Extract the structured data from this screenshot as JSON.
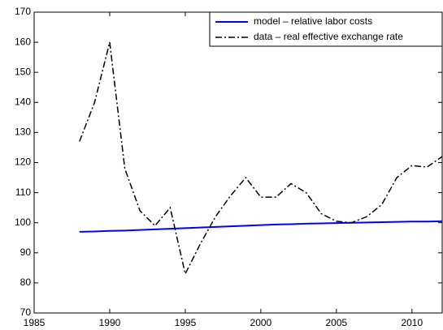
{
  "chart_data": {
    "type": "line",
    "x": [
      1988,
      1989,
      1990,
      1991,
      1992,
      1993,
      1994,
      1995,
      1996,
      1997,
      1998,
      1999,
      2000,
      2001,
      2002,
      2003,
      2004,
      2005,
      2006,
      2007,
      2008,
      2009,
      2010,
      2011,
      2012
    ],
    "series": [
      {
        "name": "model – relative labor costs",
        "color": "#0000ff",
        "style": "solid",
        "values": [
          97.0,
          97.1,
          97.3,
          97.4,
          97.6,
          97.8,
          98.0,
          98.2,
          98.4,
          98.6,
          98.8,
          99.0,
          99.2,
          99.4,
          99.5,
          99.7,
          99.8,
          99.9,
          100.0,
          100.1,
          100.2,
          100.3,
          100.4,
          100.4,
          100.5
        ]
      },
      {
        "name": "data – real effective exchange rate",
        "color": "#000000",
        "style": "dashdot",
        "values": [
          127,
          140,
          160,
          118,
          104,
          99,
          105,
          83,
          93,
          102,
          109,
          115,
          108.5,
          108.5,
          113,
          110,
          103,
          100.5,
          100,
          102,
          106,
          115,
          119,
          118.5,
          122
        ]
      }
    ],
    "xlim": [
      1985,
      2012
    ],
    "xticks": [
      1985,
      1990,
      1995,
      2000,
      2005,
      2010
    ],
    "ylim": [
      70,
      170
    ],
    "yticks": [
      70,
      80,
      90,
      100,
      110,
      120,
      130,
      140,
      150,
      160,
      170
    ],
    "grid": false,
    "legend": "upper right"
  }
}
